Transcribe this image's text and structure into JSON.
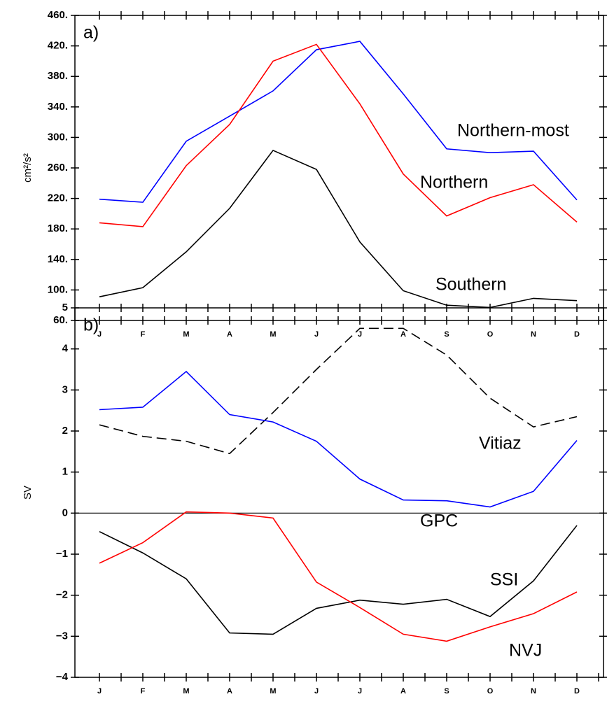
{
  "chart_data": [
    {
      "type": "line",
      "panel_label": "a)",
      "y_label": "cm²/s²",
      "categories": [
        "J",
        "F",
        "M",
        "A",
        "M",
        "J",
        "J",
        "A",
        "S",
        "O",
        "N",
        "D"
      ],
      "ylim": [
        60,
        460
      ],
      "yticks": [
        {
          "value": 60,
          "label": "60."
        },
        {
          "value": 100,
          "label": "100."
        },
        {
          "value": 140,
          "label": "140."
        },
        {
          "value": 180,
          "label": "180."
        },
        {
          "value": 220,
          "label": "220."
        },
        {
          "value": 260,
          "label": "260."
        },
        {
          "value": 300,
          "label": "300."
        },
        {
          "value": 340,
          "label": "340."
        },
        {
          "value": 380,
          "label": "380."
        },
        {
          "value": 420,
          "label": "420."
        },
        {
          "value": 460,
          "label": "460."
        }
      ],
      "series": [
        {
          "name": "Northern-most",
          "color": "#0000ff",
          "values": [
            219,
            215,
            295,
            328,
            361,
            415,
            426,
            357,
            285,
            280,
            282,
            218
          ]
        },
        {
          "name": "Northern",
          "color": "#ff0000",
          "values": [
            188,
            183,
            263,
            317,
            400,
            422,
            344,
            252,
            197,
            221,
            238,
            189
          ]
        },
        {
          "name": "Southern",
          "color": "#000000",
          "values": [
            91,
            103,
            150,
            207,
            283,
            258,
            163,
            99,
            80,
            77,
            89,
            86
          ]
        }
      ]
    },
    {
      "type": "line",
      "panel_label": "b)",
      "y_label": "SV",
      "zero_line": true,
      "categories": [
        "J",
        "F",
        "M",
        "A",
        "M",
        "J",
        "J",
        "A",
        "S",
        "O",
        "N",
        "D"
      ],
      "ylim": [
        -4,
        5
      ],
      "yticks": [
        {
          "value": -4,
          "label": "−4"
        },
        {
          "value": -3,
          "label": "−3"
        },
        {
          "value": -2,
          "label": "−2"
        },
        {
          "value": -1,
          "label": "−1"
        },
        0,
        1,
        2,
        3,
        4,
        5
      ],
      "series": [
        {
          "name": "Vitiaz",
          "color": "#000000",
          "dashed": true,
          "values": [
            2.15,
            1.87,
            1.75,
            1.45,
            2.45,
            3.5,
            4.5,
            4.5,
            3.85,
            2.8,
            2.1,
            2.35
          ]
        },
        {
          "name": "GPC",
          "color": "#0000ff",
          "values": [
            2.52,
            2.58,
            3.45,
            2.4,
            2.22,
            1.75,
            0.83,
            0.32,
            0.3,
            0.15,
            0.53,
            1.77
          ]
        },
        {
          "name": "SSI",
          "color": "#000000",
          "values": [
            -0.45,
            -0.97,
            -1.6,
            -2.92,
            -2.95,
            -2.32,
            -2.12,
            -2.22,
            -2.1,
            -2.52,
            -1.65,
            -0.3
          ]
        },
        {
          "name": "NVJ",
          "color": "#ff0000",
          "values": [
            -1.22,
            -0.72,
            0.03,
            0.0,
            -0.12,
            -1.68,
            -2.3,
            -2.95,
            -3.12,
            -2.77,
            -2.45,
            -1.92
          ]
        }
      ]
    }
  ]
}
